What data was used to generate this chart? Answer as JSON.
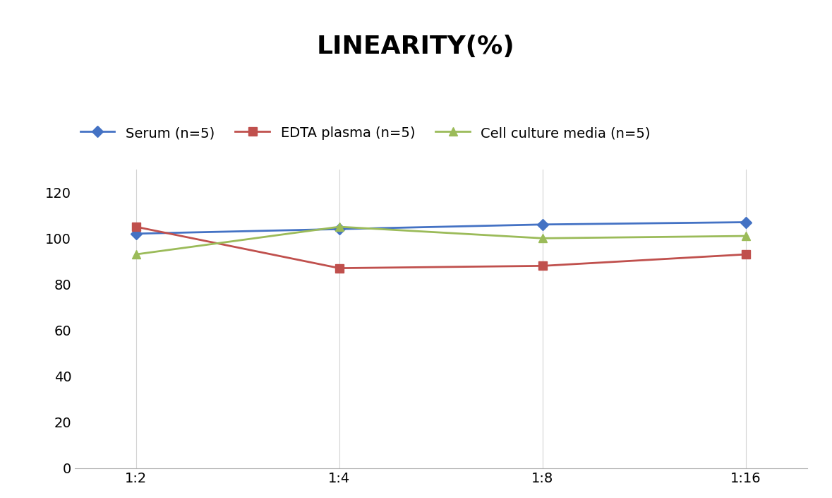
{
  "title": "LINEARITY(%)",
  "title_fontsize": 26,
  "title_fontweight": "bold",
  "x_labels": [
    "1:2",
    "1:4",
    "1:8",
    "1:16"
  ],
  "series": [
    {
      "label": "Serum (n=5)",
      "values": [
        102,
        104,
        106,
        107
      ],
      "color": "#4472C4",
      "marker": "D",
      "marker_size": 8,
      "linewidth": 2.0
    },
    {
      "label": "EDTA plasma (n=5)",
      "values": [
        105,
        87,
        88,
        93
      ],
      "color": "#C0504D",
      "marker": "s",
      "marker_size": 8,
      "linewidth": 2.0
    },
    {
      "label": "Cell culture media (n=5)",
      "values": [
        93,
        105,
        100,
        101
      ],
      "color": "#9BBB59",
      "marker": "^",
      "marker_size": 9,
      "linewidth": 2.0
    }
  ],
  "ylim": [
    0,
    130
  ],
  "yticks": [
    0,
    20,
    40,
    60,
    80,
    100,
    120
  ],
  "grid_color": "#D3D3D3",
  "background_color": "#FFFFFF",
  "legend_fontsize": 14,
  "tick_fontsize": 14
}
